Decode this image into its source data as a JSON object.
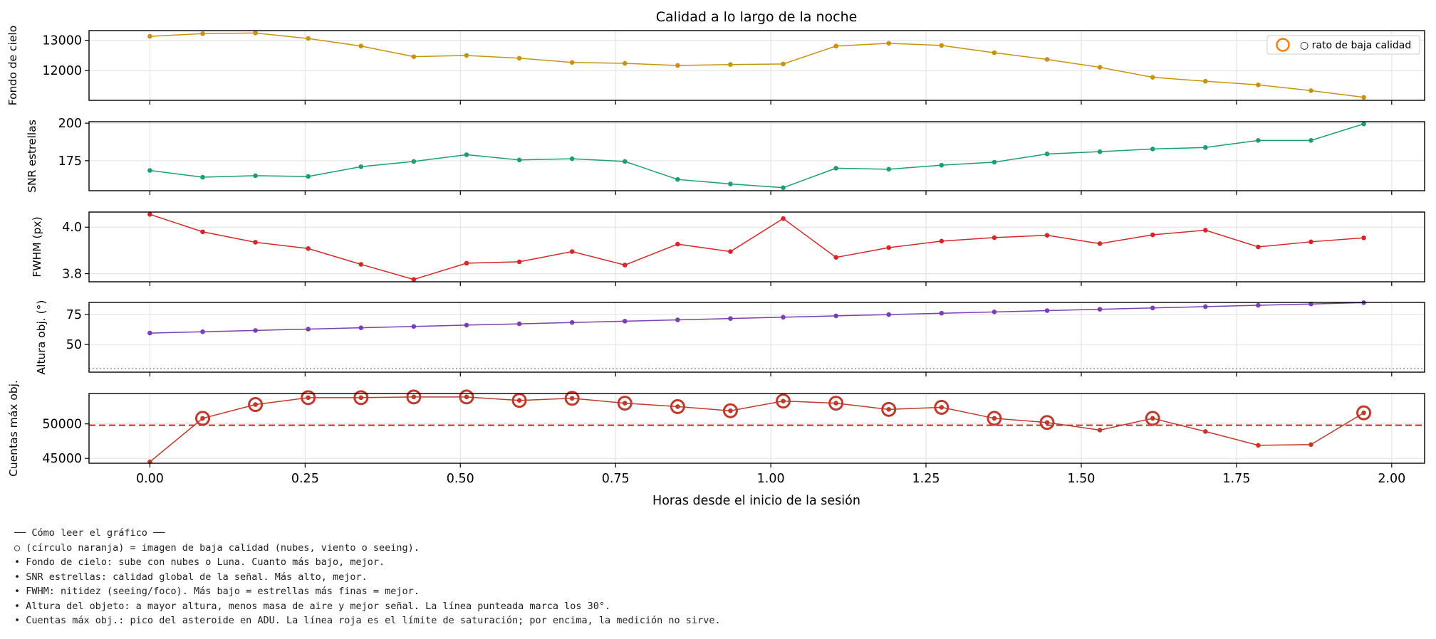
{
  "chart_data": {
    "type": "line",
    "title": "Calidad a lo largo de la noche",
    "xlabel": "Horas desde el inicio de la sesión",
    "xlim": [
      -0.098,
      2.053
    ],
    "x_ticks": [
      0.0,
      0.25,
      0.5,
      0.75,
      1.0,
      1.25,
      1.5,
      1.75,
      2.0
    ],
    "x_tick_labels": [
      "0.00",
      "0.25",
      "0.50",
      "0.75",
      "1.00",
      "1.25",
      "1.50",
      "1.75",
      "2.00"
    ],
    "x": [
      0.0,
      0.085,
      0.17,
      0.255,
      0.34,
      0.425,
      0.51,
      0.595,
      0.68,
      0.765,
      0.85,
      0.935,
      1.02,
      1.105,
      1.19,
      1.275,
      1.36,
      1.445,
      1.53,
      1.615,
      1.7,
      1.785,
      1.87,
      1.955
    ],
    "grid": true,
    "legend": {
      "position": "top-right",
      "entries": [
        "○ rato de baja calidad"
      ]
    },
    "marker_color": "#ff7f0e",
    "panels": [
      {
        "ylabel": "Fondo de cielo",
        "color": "#c9920e",
        "ylim": [
          11020,
          13320
        ],
        "y_ticks": [
          12000,
          13000
        ],
        "y_tick_labels": [
          "12000",
          "13000"
        ],
        "values": [
          13130,
          13220,
          13240,
          13060,
          12810,
          12460,
          12500,
          12410,
          12270,
          12240,
          12170,
          12200,
          12220,
          12810,
          12900,
          12830,
          12590,
          12370,
          12110,
          11780,
          11650,
          11530,
          11340,
          11120
        ]
      },
      {
        "ylabel": "SNR estrellas",
        "color": "#1a9e77",
        "ylim": [
          155,
          201
        ],
        "y_ticks": [
          175,
          200
        ],
        "y_tick_labels": [
          "175",
          "200"
        ],
        "values": [
          168.5,
          164,
          165,
          164.5,
          171,
          174.5,
          179,
          175.5,
          176.3,
          174.5,
          162.5,
          159.5,
          157,
          170,
          169.3,
          172,
          174,
          179.5,
          181,
          182.8,
          183.8,
          188.5,
          188.5,
          199.5
        ]
      },
      {
        "ylabel": "FWHM (px)",
        "color": "#d62728",
        "ylim": [
          3.765,
          4.065
        ],
        "y_ticks": [
          3.8,
          4.0
        ],
        "y_tick_labels": [
          "3.8",
          "4.0"
        ],
        "values": [
          4.055,
          3.98,
          3.935,
          3.908,
          3.84,
          3.775,
          3.845,
          3.851,
          3.895,
          3.837,
          3.927,
          3.895,
          4.037,
          3.87,
          3.912,
          3.94,
          3.955,
          3.965,
          3.929,
          3.967,
          3.987,
          3.915,
          3.937,
          3.954
        ]
      },
      {
        "ylabel": "Altura obj. (°)",
        "color": "#7b3fb5",
        "ylim": [
          27,
          85
        ],
        "y_ticks": [
          50,
          75
        ],
        "y_tick_labels": [
          "50",
          "75"
        ],
        "values": [
          59.5,
          60.6,
          61.7,
          62.8,
          63.9,
          65,
          66.1,
          67.2,
          68.3,
          69.4,
          70.5,
          71.6,
          72.7,
          73.8,
          74.9,
          76,
          77.1,
          78.2,
          79.3,
          80.4,
          81.5,
          82.6,
          83.7,
          84.8
        ],
        "reference_line": {
          "y": 30,
          "style": "dotted",
          "color": "#888888"
        }
      },
      {
        "ylabel": "Cuentas máx obj.",
        "color": "#c0392b",
        "ylim": [
          44300,
          54400
        ],
        "y_ticks": [
          45000,
          50000
        ],
        "y_tick_labels": [
          "45000",
          "50000"
        ],
        "values": [
          44500,
          50800,
          52800,
          53800,
          53800,
          53900,
          53900,
          53400,
          53700,
          53000,
          52500,
          51900,
          53300,
          53000,
          52100,
          52400,
          50800,
          50200,
          49100,
          50800,
          48900,
          46900,
          47000,
          51600
        ],
        "reference_line": {
          "y": 49800,
          "style": "dashed",
          "color": "#d62728"
        },
        "low_quality_marker_indices": [
          1,
          2,
          3,
          4,
          5,
          6,
          7,
          8,
          9,
          10,
          11,
          12,
          13,
          14,
          15,
          16,
          17,
          19,
          23
        ]
      }
    ]
  },
  "notes": {
    "heading": "── Cómo leer el gráfico ──",
    "lines": [
      "○ (círculo naranja) = imagen de baja calidad (nubes, viento o seeing).",
      "• Fondo de cielo: sube con nubes o Luna. Cuanto más bajo, mejor.",
      "• SNR estrellas: calidad global de la señal. Más alto, mejor.",
      "• FWHM: nitidez (seeing/foco). Más bajo = estrellas más finas = mejor.",
      "• Altura del objeto: a mayor altura, menos masa de aire y mejor señal. La línea punteada marca los 30°.",
      "• Cuentas máx obj.: pico del asteroide en ADU. La línea roja es el límite de saturación; por encima, la medición no sirve."
    ]
  }
}
